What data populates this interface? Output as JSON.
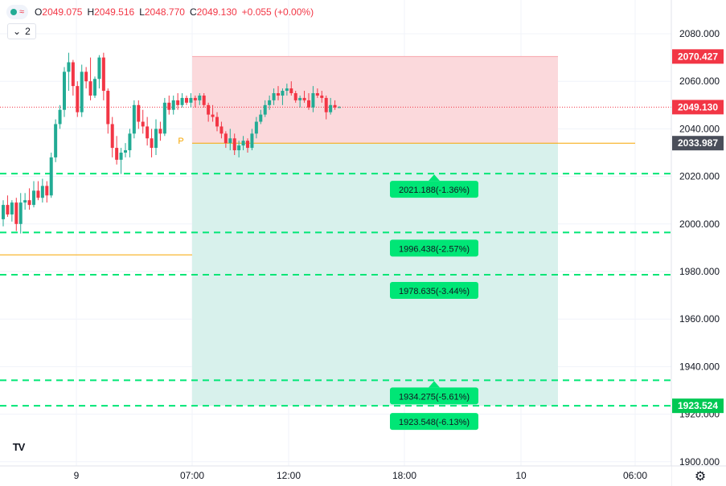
{
  "legend": {
    "open_label": "O",
    "open": "2049.075",
    "high_label": "H",
    "high": "2049.516",
    "low_label": "L",
    "low": "2048.770",
    "close_label": "C",
    "close": "2049.130",
    "change": "+0.055 (+0.00%)",
    "wave_icon": "≈"
  },
  "layers_count": "2",
  "logo_text": "TV",
  "gear_icon": "⚙",
  "colors": {
    "up": "#22ab94",
    "down": "#f23645",
    "target": "#00e676",
    "stop_zone": "#fbd9dc",
    "profit_zone": "#d8f1ec",
    "entry": "#f7a600",
    "axis_bg": "#ffffff"
  },
  "chart_data": {
    "type": "candlestick",
    "ylim": [
      1900,
      2090
    ],
    "y_ticks": [
      "2080.000",
      "2060.000",
      "2040.000",
      "2020.000",
      "2000.000",
      "1980.000",
      "1960.000",
      "1940.000",
      "1920.000",
      "1900.000"
    ],
    "x_ticks": [
      "9",
      "07:00",
      "12:00",
      "18:00",
      "10",
      "06:00"
    ],
    "price_labels": [
      {
        "value": 2070.427,
        "text": "2070.427",
        "color": "#f23645"
      },
      {
        "value": 2049.13,
        "text": "2049.130",
        "color": "#f23645"
      },
      {
        "value": 2033.987,
        "text": "2033.987",
        "color": "#4a4e5a"
      },
      {
        "value": 1923.524,
        "text": "1923.524",
        "color": "#00c853"
      }
    ],
    "current_price": 2049.13,
    "position": {
      "entry": 2033.987,
      "stop": 2070.427,
      "bottom": 1923.524,
      "entry_marker": "P"
    },
    "pivot_line": 1987.0,
    "targets": [
      {
        "price": 2021.188,
        "label": "2021.188(-1.36%)",
        "arrow": true
      },
      {
        "price": 1996.438,
        "label": "1996.438(-2.57%)",
        "arrow": false
      },
      {
        "price": 1978.635,
        "label": "1978.635(-3.44%)",
        "arrow": false
      },
      {
        "price": 1934.275,
        "label": "1934.275(-5.61%)",
        "arrow": true
      },
      {
        "price": 1923.548,
        "label": "1923.548(-6.13%)",
        "arrow": false
      }
    ],
    "candles": [
      [
        2002,
        2010,
        1999,
        2008
      ],
      [
        2008,
        2012,
        2003,
        2004
      ],
      [
        2004,
        2010,
        2001,
        2009
      ],
      [
        2009,
        2011,
        1997,
        2000
      ],
      [
        2000,
        2013,
        1996,
        2009
      ],
      [
        2009,
        2013,
        2006,
        2010
      ],
      [
        2010,
        2015,
        2006,
        2008
      ],
      [
        2008,
        2018,
        2007,
        2014
      ],
      [
        2014,
        2018,
        2010,
        2011
      ],
      [
        2011,
        2019,
        2009,
        2016
      ],
      [
        2016,
        2018,
        2009,
        2012
      ],
      [
        2012,
        2030,
        2011,
        2028
      ],
      [
        2028,
        2044,
        2026,
        2042
      ],
      [
        2042,
        2050,
        2040,
        2048
      ],
      [
        2048,
        2066,
        2045,
        2064
      ],
      [
        2064,
        2072,
        2056,
        2068
      ],
      [
        2068,
        2069,
        2054,
        2058
      ],
      [
        2058,
        2060,
        2045,
        2047
      ],
      [
        2047,
        2067,
        2045,
        2064
      ],
      [
        2064,
        2066,
        2057,
        2060
      ],
      [
        2060,
        2070,
        2052,
        2054
      ],
      [
        2054,
        2062,
        2053,
        2061
      ],
      [
        2061,
        2071,
        2057,
        2070
      ],
      [
        2070,
        2072,
        2052,
        2056
      ],
      [
        2056,
        2057,
        2038,
        2042
      ],
      [
        2042,
        2045,
        2028,
        2032
      ],
      [
        2032,
        2037,
        2025,
        2027
      ],
      [
        2027,
        2032,
        2021,
        2030
      ],
      [
        2030,
        2034,
        2028,
        2031
      ],
      [
        2031,
        2040,
        2028,
        2038
      ],
      [
        2038,
        2052,
        2036,
        2050
      ],
      [
        2050,
        2052,
        2040,
        2043
      ],
      [
        2043,
        2048,
        2038,
        2041
      ],
      [
        2041,
        2045,
        2033,
        2036
      ],
      [
        2036,
        2040,
        2028,
        2032
      ],
      [
        2032,
        2044,
        2029,
        2040
      ],
      [
        2040,
        2043,
        2035,
        2038
      ],
      [
        2038,
        2053,
        2037,
        2051
      ],
      [
        2051,
        2054,
        2046,
        2048
      ],
      [
        2048,
        2054,
        2046,
        2052
      ],
      [
        2052,
        2055,
        2048,
        2050
      ],
      [
        2050,
        2055,
        2049,
        2053
      ],
      [
        2053,
        2054,
        2050,
        2051
      ],
      [
        2051,
        2055,
        2049,
        2053
      ],
      [
        2053,
        2054,
        2049,
        2052
      ],
      [
        2052,
        2055,
        2050,
        2054
      ],
      [
        2054,
        2055,
        2049,
        2050
      ],
      [
        2050,
        2051,
        2043,
        2046
      ],
      [
        2046,
        2050,
        2043,
        2045
      ],
      [
        2045,
        2047,
        2039,
        2041
      ],
      [
        2041,
        2043,
        2036,
        2038
      ],
      [
        2038,
        2039,
        2032,
        2034
      ],
      [
        2034,
        2040,
        2031,
        2036
      ],
      [
        2036,
        2038,
        2029,
        2031
      ],
      [
        2031,
        2035,
        2028,
        2033
      ],
      [
        2033,
        2037,
        2031,
        2035
      ],
      [
        2035,
        2036,
        2030,
        2032
      ],
      [
        2032,
        2040,
        2031,
        2038
      ],
      [
        2038,
        2045,
        2036,
        2043
      ],
      [
        2043,
        2048,
        2042,
        2046
      ],
      [
        2046,
        2052,
        2045,
        2050
      ],
      [
        2050,
        2054,
        2048,
        2052
      ],
      [
        2052,
        2057,
        2050,
        2055
      ],
      [
        2055,
        2058,
        2052,
        2054
      ],
      [
        2054,
        2057,
        2050,
        2056
      ],
      [
        2056,
        2059,
        2054,
        2057
      ],
      [
        2057,
        2060,
        2054,
        2055
      ],
      [
        2055,
        2056,
        2051,
        2052
      ],
      [
        2052,
        2054,
        2049,
        2053
      ],
      [
        2053,
        2056,
        2051,
        2052
      ],
      [
        2052,
        2055,
        2048,
        2049
      ],
      [
        2049,
        2058,
        2047,
        2055
      ],
      [
        2055,
        2057,
        2053,
        2054
      ],
      [
        2054,
        2056,
        2051,
        2053
      ],
      [
        2053,
        2054,
        2044,
        2047
      ],
      [
        2047,
        2053,
        2046,
        2050
      ],
      [
        2050,
        2052,
        2048,
        2049
      ],
      [
        2049.075,
        2049.516,
        2048.77,
        2049.13
      ]
    ]
  }
}
